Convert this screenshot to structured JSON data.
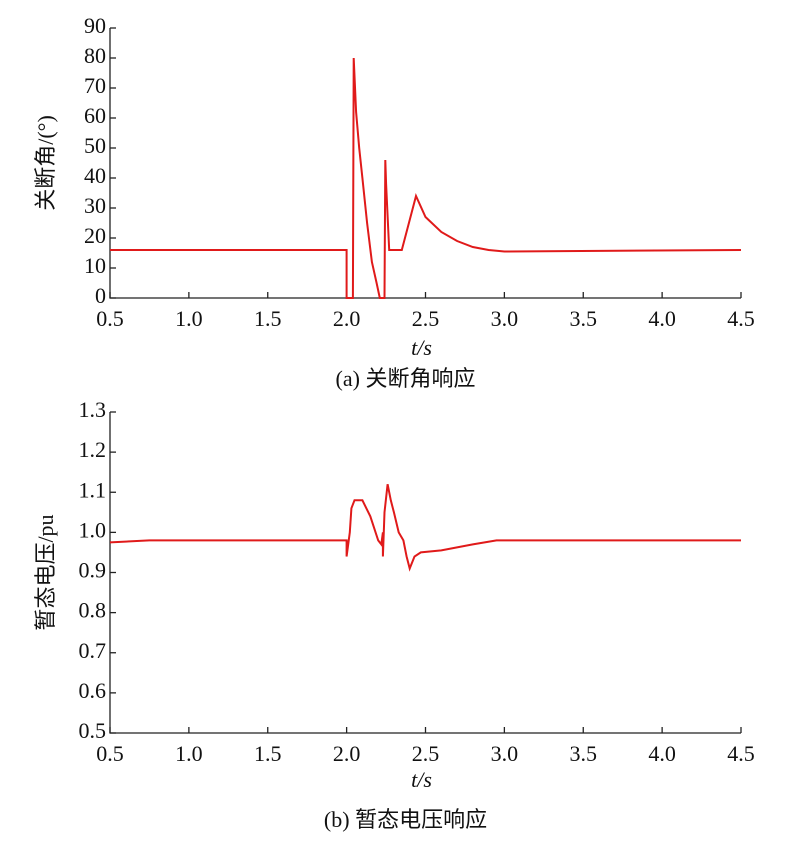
{
  "chart_data": [
    {
      "type": "line",
      "ylabel": "关断角/(°)",
      "xlabel": "t/s",
      "caption": "(a) 关断角响应",
      "color": "#e01a1a",
      "x": [
        0.5,
        2.0,
        2.0,
        2.03,
        2.04,
        2.045,
        2.06,
        2.08,
        2.1,
        2.13,
        2.16,
        2.19,
        2.21,
        2.24,
        2.245,
        2.25,
        2.27,
        2.35,
        2.4,
        2.44,
        2.5,
        2.6,
        2.7,
        2.8,
        2.9,
        3.0,
        4.5
      ],
      "values": [
        16,
        16,
        0,
        0,
        0,
        80,
        62,
        50,
        40,
        25,
        12,
        5,
        0,
        0,
        46,
        38,
        16,
        16,
        26,
        34,
        27,
        22,
        19,
        17,
        16,
        15.5,
        16
      ],
      "xlim": [
        0.5,
        4.5
      ],
      "ylim": [
        0,
        90
      ],
      "xticks": [
        0.5,
        {
          "value": 1,
          "label": "1.0"
        },
        1.5,
        {
          "value": 2,
          "label": "2.0"
        },
        2.5,
        {
          "value": 3,
          "label": "3.0"
        },
        3.5,
        {
          "value": 4,
          "label": "4.0"
        },
        4.5
      ],
      "yticks": [
        0,
        10,
        20,
        30,
        40,
        50,
        60,
        70,
        80,
        90
      ]
    },
    {
      "type": "line",
      "ylabel": "暂态电压/pu",
      "xlabel": "t/s",
      "caption": "(b) 暂态电压响应",
      "color": "#e01a1a",
      "x": [
        0.5,
        0.75,
        2.0,
        2.0,
        2.02,
        2.03,
        2.05,
        2.1,
        2.15,
        2.2,
        2.22,
        2.23,
        2.23,
        2.24,
        2.26,
        2.28,
        2.3,
        2.33,
        2.36,
        2.38,
        2.4,
        2.43,
        2.47,
        2.6,
        2.8,
        2.95,
        4.5
      ],
      "values": [
        0.975,
        0.98,
        0.98,
        0.94,
        1.0,
        1.06,
        1.08,
        1.08,
        1.04,
        0.98,
        0.97,
        1.0,
        0.94,
        1.05,
        1.12,
        1.08,
        1.05,
        1.0,
        0.98,
        0.94,
        0.91,
        0.94,
        0.95,
        0.955,
        0.97,
        0.98,
        0.98
      ],
      "xlim": [
        0.5,
        4.5
      ],
      "ylim": [
        0.5,
        1.3
      ],
      "xticks": [
        0.5,
        {
          "value": 1,
          "label": "1.0"
        },
        1.5,
        {
          "value": 2,
          "label": "2.0"
        },
        2.5,
        {
          "value": 3,
          "label": "3.0"
        },
        3.5,
        {
          "value": 4,
          "label": "4.0"
        },
        4.5
      ],
      "yticks": [
        0.5,
        0.6,
        0.7,
        0.8,
        0.9,
        {
          "value": 1,
          "label": "1.0"
        },
        1.1,
        1.2,
        1.3
      ]
    }
  ]
}
